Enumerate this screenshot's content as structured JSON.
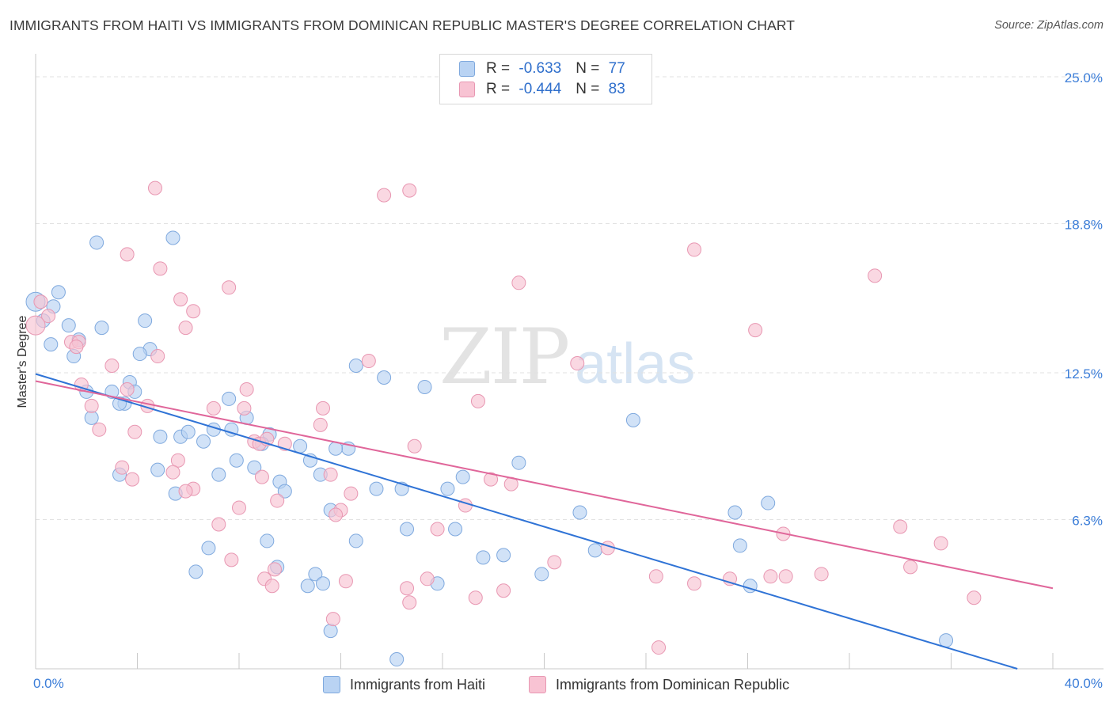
{
  "header": {
    "title": "IMMIGRANTS FROM HAITI VS IMMIGRANTS FROM DOMINICAN REPUBLIC MASTER'S DEGREE CORRELATION CHART",
    "source": "Source: ZipAtlas.com"
  },
  "watermark": {
    "zip": "ZIP",
    "atlas": "atlas"
  },
  "legend": {
    "haiti": {
      "r_label": "R = ",
      "r_value": "-0.633",
      "n_label": "N = ",
      "n_value": "77"
    },
    "dominican": {
      "r_label": "R = ",
      "r_value": "-0.444",
      "n_label": "N = ",
      "n_value": "83"
    }
  },
  "colors": {
    "haiti_fill": "#b9d3f3",
    "haiti_stroke": "#7fa9de",
    "haiti_line": "#2f73d6",
    "dominican_fill": "#f8c3d3",
    "dominican_stroke": "#e897b2",
    "dominican_line": "#e0669a",
    "tick_label": "#3b7dd8",
    "grid": "#e2e2e2"
  },
  "chart_data": {
    "type": "scatter",
    "title": "IMMIGRANTS FROM HAITI VS IMMIGRANTS FROM DOMINICAN REPUBLIC MASTER'S DEGREE CORRELATION CHART",
    "xlabel": "",
    "ylabel": "Master's Degree",
    "xlim": [
      0,
      40
    ],
    "ylim": [
      0,
      25
    ],
    "x_tick_labels": [
      "0.0%",
      "40.0%"
    ],
    "y_ticks": [
      6.3,
      12.5,
      18.8,
      25.0
    ],
    "y_tick_labels": [
      "6.3%",
      "12.5%",
      "18.8%",
      "25.0%"
    ],
    "grid": true,
    "legend_position": "top-center and bottom",
    "series": [
      {
        "name": "Immigrants from Haiti",
        "r": -0.633,
        "n": 77,
        "trend": {
          "x": [
            0,
            40
          ],
          "y": [
            12.45,
            -0.45
          ]
        },
        "points": [
          [
            0.0,
            15.5
          ],
          [
            0.3,
            14.7
          ],
          [
            0.9,
            15.9
          ],
          [
            0.7,
            15.3
          ],
          [
            0.6,
            13.7
          ],
          [
            1.3,
            14.5
          ],
          [
            1.7,
            13.9
          ],
          [
            1.5,
            13.2
          ],
          [
            2.6,
            14.4
          ],
          [
            2.4,
            18.0
          ],
          [
            5.4,
            18.2
          ],
          [
            4.3,
            14.7
          ],
          [
            4.5,
            13.5
          ],
          [
            4.1,
            13.3
          ],
          [
            3.7,
            12.1
          ],
          [
            2.0,
            11.7
          ],
          [
            3.0,
            11.7
          ],
          [
            3.9,
            11.7
          ],
          [
            2.2,
            10.6
          ],
          [
            3.5,
            11.2
          ],
          [
            3.3,
            11.2
          ],
          [
            4.9,
            9.8
          ],
          [
            5.7,
            9.8
          ],
          [
            6.0,
            10.0
          ],
          [
            6.6,
            9.6
          ],
          [
            7.0,
            10.1
          ],
          [
            7.7,
            10.1
          ],
          [
            7.6,
            11.4
          ],
          [
            8.3,
            10.6
          ],
          [
            9.2,
            9.9
          ],
          [
            8.9,
            9.5
          ],
          [
            10.4,
            9.4
          ],
          [
            10.8,
            8.8
          ],
          [
            7.9,
            8.8
          ],
          [
            8.6,
            8.5
          ],
          [
            4.8,
            8.4
          ],
          [
            3.3,
            8.2
          ],
          [
            7.2,
            8.2
          ],
          [
            12.3,
            9.3
          ],
          [
            11.8,
            9.3
          ],
          [
            9.6,
            7.9
          ],
          [
            9.8,
            7.5
          ],
          [
            11.2,
            8.2
          ],
          [
            13.4,
            7.6
          ],
          [
            14.4,
            7.6
          ],
          [
            16.2,
            7.6
          ],
          [
            16.8,
            8.1
          ],
          [
            19.0,
            8.7
          ],
          [
            11.6,
            6.7
          ],
          [
            14.6,
            5.9
          ],
          [
            12.6,
            5.4
          ],
          [
            16.5,
            5.9
          ],
          [
            21.4,
            6.6
          ],
          [
            17.6,
            4.7
          ],
          [
            18.4,
            4.8
          ],
          [
            19.9,
            4.0
          ],
          [
            22.0,
            5.0
          ],
          [
            9.1,
            5.4
          ],
          [
            6.8,
            5.1
          ],
          [
            6.3,
            4.1
          ],
          [
            9.5,
            4.3
          ],
          [
            11.0,
            4.0
          ],
          [
            11.3,
            3.6
          ],
          [
            10.7,
            3.5
          ],
          [
            15.8,
            3.6
          ],
          [
            11.6,
            1.6
          ],
          [
            12.6,
            12.8
          ],
          [
            13.7,
            12.3
          ],
          [
            15.3,
            11.9
          ],
          [
            23.5,
            10.5
          ],
          [
            14.2,
            0.4
          ],
          [
            5.5,
            7.4
          ],
          [
            27.5,
            6.6
          ],
          [
            28.8,
            7.0
          ],
          [
            27.7,
            5.2
          ],
          [
            28.1,
            3.5
          ],
          [
            35.8,
            1.2
          ]
        ]
      },
      {
        "name": "Immigrants from Dominican Republic",
        "r": -0.444,
        "n": 83,
        "trend": {
          "x": [
            0,
            40
          ],
          "y": [
            12.15,
            3.4
          ]
        },
        "points": [
          [
            0.2,
            15.5
          ],
          [
            0.5,
            14.9
          ],
          [
            0.0,
            14.5
          ],
          [
            1.4,
            13.8
          ],
          [
            1.7,
            13.8
          ],
          [
            1.6,
            13.6
          ],
          [
            3.0,
            12.8
          ],
          [
            1.8,
            12.0
          ],
          [
            3.6,
            11.8
          ],
          [
            2.2,
            11.1
          ],
          [
            4.4,
            11.1
          ],
          [
            2.5,
            10.1
          ],
          [
            3.9,
            10.0
          ],
          [
            4.8,
            13.2
          ],
          [
            4.7,
            20.3
          ],
          [
            3.6,
            17.5
          ],
          [
            4.9,
            16.9
          ],
          [
            5.7,
            15.6
          ],
          [
            6.2,
            15.1
          ],
          [
            7.6,
            16.1
          ],
          [
            5.9,
            14.4
          ],
          [
            7.0,
            11.0
          ],
          [
            8.2,
            11.0
          ],
          [
            8.3,
            11.8
          ],
          [
            8.6,
            9.6
          ],
          [
            9.8,
            9.5
          ],
          [
            11.3,
            11.0
          ],
          [
            11.2,
            10.3
          ],
          [
            13.1,
            13.0
          ],
          [
            14.7,
            20.2
          ],
          [
            13.7,
            20.0
          ],
          [
            17.4,
            11.3
          ],
          [
            17.9,
            8.0
          ],
          [
            18.7,
            7.8
          ],
          [
            14.9,
            9.4
          ],
          [
            11.6,
            8.2
          ],
          [
            8.9,
            8.1
          ],
          [
            6.2,
            7.6
          ],
          [
            5.9,
            7.5
          ],
          [
            5.6,
            8.8
          ],
          [
            5.4,
            8.3
          ],
          [
            3.4,
            8.5
          ],
          [
            8.0,
            6.8
          ],
          [
            7.2,
            6.1
          ],
          [
            9.5,
            7.1
          ],
          [
            12.0,
            6.7
          ],
          [
            12.4,
            7.4
          ],
          [
            11.8,
            6.5
          ],
          [
            16.9,
            6.9
          ],
          [
            15.8,
            5.9
          ],
          [
            18.4,
            3.3
          ],
          [
            20.4,
            4.5
          ],
          [
            21.3,
            12.9
          ],
          [
            17.3,
            3.0
          ],
          [
            14.6,
            3.4
          ],
          [
            15.4,
            3.8
          ],
          [
            14.7,
            2.8
          ],
          [
            12.2,
            3.7
          ],
          [
            11.7,
            2.1
          ],
          [
            9.0,
            3.8
          ],
          [
            9.4,
            4.2
          ],
          [
            9.3,
            3.5
          ],
          [
            7.7,
            4.6
          ],
          [
            8.8,
            9.5
          ],
          [
            9.1,
            9.7
          ],
          [
            22.5,
            5.1
          ],
          [
            24.4,
            3.9
          ],
          [
            25.9,
            3.6
          ],
          [
            27.3,
            3.8
          ],
          [
            28.9,
            3.9
          ],
          [
            29.5,
            3.9
          ],
          [
            30.9,
            4.0
          ],
          [
            29.4,
            5.7
          ],
          [
            34.4,
            4.3
          ],
          [
            34.0,
            6.0
          ],
          [
            35.6,
            5.3
          ],
          [
            36.9,
            3.0
          ],
          [
            33.0,
            16.6
          ],
          [
            25.9,
            17.7
          ],
          [
            28.3,
            14.3
          ],
          [
            19.0,
            16.3
          ],
          [
            24.5,
            0.9
          ],
          [
            3.8,
            8.0
          ]
        ]
      }
    ]
  },
  "axes": {
    "y_label": "Master's Degree",
    "x_min_label": "0.0%",
    "x_max_label": "40.0%"
  }
}
